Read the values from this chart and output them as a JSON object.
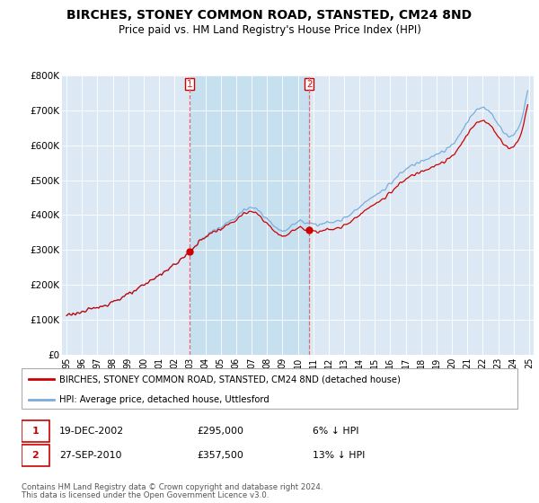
{
  "title": "BIRCHES, STONEY COMMON ROAD, STANSTED, CM24 8ND",
  "subtitle": "Price paid vs. HM Land Registry's House Price Index (HPI)",
  "title_fontsize": 10,
  "subtitle_fontsize": 8.5,
  "hpi_color": "#7aaddc",
  "hpi_fill_color": "#c8dff0",
  "price_color": "#cc0000",
  "dashed_color": "#ee6666",
  "legend_entry1": "BIRCHES, STONEY COMMON ROAD, STANSTED, CM24 8ND (detached house)",
  "legend_entry2": "HPI: Average price, detached house, Uttlesford",
  "sale1_date": "19-DEC-2002",
  "sale1_price": "£295,000",
  "sale1_note": "6% ↓ HPI",
  "sale2_date": "27-SEP-2010",
  "sale2_price": "£357,500",
  "sale2_note": "13% ↓ HPI",
  "footer1": "Contains HM Land Registry data © Crown copyright and database right 2024.",
  "footer2": "This data is licensed under the Open Government Licence v3.0.",
  "ylim": [
    0,
    800000
  ],
  "yticks": [
    0,
    100000,
    200000,
    300000,
    400000,
    500000,
    600000,
    700000,
    800000
  ],
  "ytick_labels": [
    "£0",
    "£100K",
    "£200K",
    "£300K",
    "£400K",
    "£500K",
    "£600K",
    "£700K",
    "£800K"
  ],
  "sale1_x": 2002.97,
  "sale1_y": 295000,
  "sale2_x": 2010.75,
  "sale2_y": 357500,
  "xmin": 1995.0,
  "xmax": 2025.3
}
